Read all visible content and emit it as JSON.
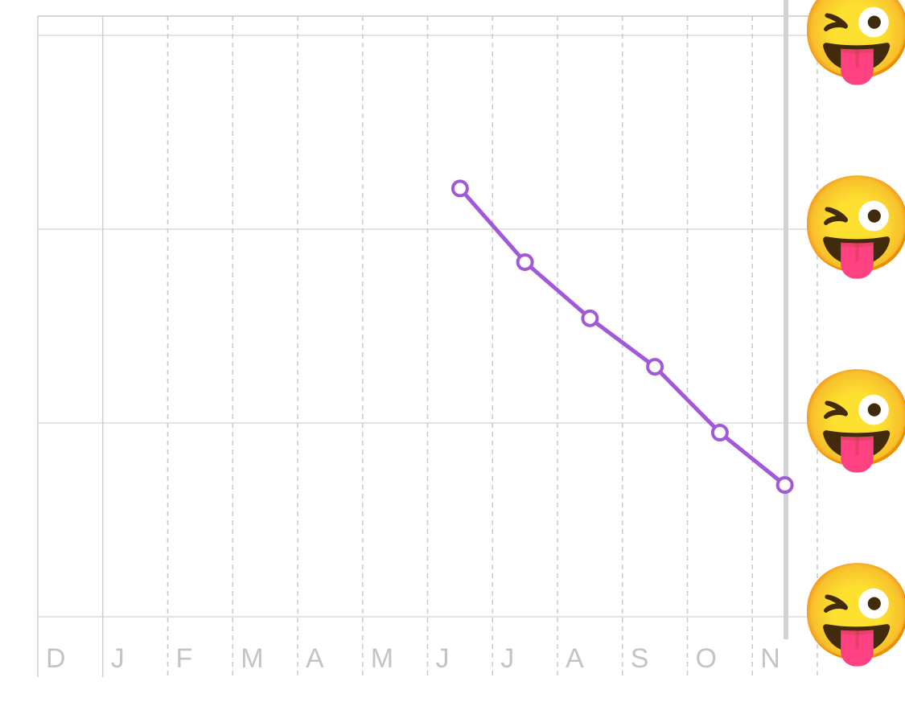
{
  "chart_data": {
    "type": "line",
    "categories": [
      "D",
      "J",
      "F",
      "M",
      "A",
      "M",
      "J",
      "J",
      "A",
      "S",
      "O",
      "N"
    ],
    "series": [
      {
        "color": "#a259d9",
        "values": [
          null,
          null,
          null,
          null,
          null,
          null,
          2.21,
          1.83,
          1.54,
          1.29,
          0.95,
          0.68
        ]
      }
    ],
    "ylim": [
      0,
      3
    ],
    "yticks": [
      {
        "value": 0,
        "label": "😜"
      },
      {
        "value": 1,
        "label": "😜"
      },
      {
        "value": 2,
        "label": "😜"
      },
      {
        "value": 3,
        "label": "😜"
      }
    ],
    "grid": true
  }
}
